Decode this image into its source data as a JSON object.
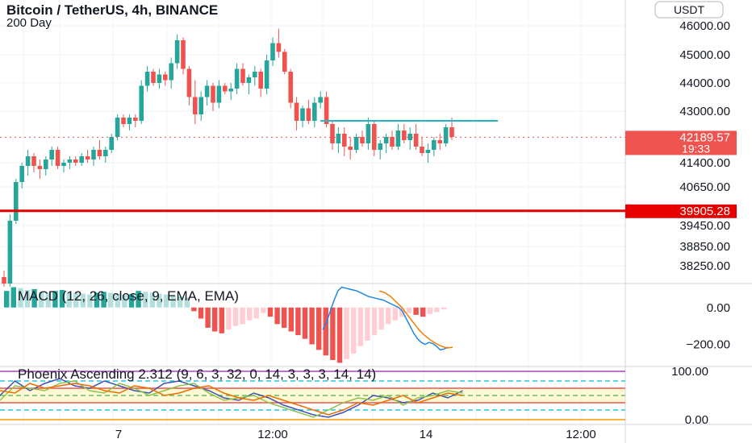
{
  "header": {
    "title": "Bitcoin / TetherUS, 4h, BINANCE",
    "subtitle": "200 Day",
    "currency_badge": "USDT"
  },
  "colors": {
    "up": "#26a69a",
    "down": "#ef5350",
    "support_line": "#e60000",
    "resistance_line": "#26b5c7",
    "macd_line": "#1e88e5",
    "signal_line": "#f57c00",
    "hist_up_strong": "#26a69a",
    "hist_up_weak": "#b2dfdb",
    "hist_down_strong": "#ef5350",
    "hist_down_weak": "#ffcdd2"
  },
  "chart_data": [
    {
      "type": "candlestick",
      "pane": "price",
      "price_axis_labels": [
        "46000.00",
        "45000.00",
        "44000.00",
        "43000.00",
        "41400.00",
        "40650.00",
        "39450.00",
        "38850.00",
        "38250.00"
      ],
      "time_axis_labels": [
        "7",
        "12:00",
        "14",
        "12:00"
      ],
      "last_price": "42189.57",
      "countdown": "19:33",
      "support_level": "39905.28",
      "resistance_level": 42700,
      "ohlc": [
        [
          37900,
          38100,
          37600,
          37700
        ],
        [
          37700,
          39800,
          37600,
          39600
        ],
        [
          39600,
          40900,
          39500,
          40800
        ],
        [
          40800,
          41400,
          40600,
          41300
        ],
        [
          41300,
          41800,
          41000,
          41600
        ],
        [
          41600,
          41700,
          41100,
          41300
        ],
        [
          41300,
          41500,
          40900,
          41200
        ],
        [
          41200,
          41600,
          41000,
          41500
        ],
        [
          41500,
          41900,
          41300,
          41800
        ],
        [
          41800,
          41900,
          41200,
          41300
        ],
        [
          41300,
          41500,
          41100,
          41400
        ],
        [
          41400,
          41600,
          41200,
          41500
        ],
        [
          41500,
          41600,
          41300,
          41400
        ],
        [
          41400,
          41700,
          41300,
          41600
        ],
        [
          41600,
          41800,
          41400,
          41500
        ],
        [
          41500,
          41900,
          41300,
          41800
        ],
        [
          41800,
          42100,
          41500,
          41600
        ],
        [
          41600,
          41900,
          41400,
          41800
        ],
        [
          41800,
          42300,
          41700,
          42200
        ],
        [
          42200,
          42900,
          42100,
          42800
        ],
        [
          42800,
          42900,
          42500,
          42600
        ],
        [
          42600,
          42900,
          42400,
          42800
        ],
        [
          42800,
          42900,
          42500,
          42700
        ],
        [
          42700,
          44100,
          42600,
          43900
        ],
        [
          43900,
          44600,
          43700,
          44400
        ],
        [
          44400,
          44500,
          43900,
          44000
        ],
        [
          44000,
          44500,
          43800,
          44300
        ],
        [
          44300,
          44400,
          43900,
          44100
        ],
        [
          44100,
          44900,
          43800,
          44700
        ],
        [
          44700,
          45700,
          44500,
          45500
        ],
        [
          45500,
          45600,
          44300,
          44500
        ],
        [
          44500,
          44600,
          43200,
          43500
        ],
        [
          43500,
          44100,
          42600,
          42900
        ],
        [
          42900,
          43700,
          42700,
          43500
        ],
        [
          43500,
          44100,
          43200,
          43900
        ],
        [
          43900,
          44000,
          43000,
          43300
        ],
        [
          43300,
          44100,
          43100,
          43900
        ],
        [
          43900,
          44000,
          43600,
          43700
        ],
        [
          43700,
          44000,
          43400,
          43800
        ],
        [
          43800,
          44700,
          43600,
          44500
        ],
        [
          44500,
          44700,
          43900,
          44000
        ],
        [
          44000,
          44300,
          43600,
          44200
        ],
        [
          44200,
          44600,
          43900,
          44400
        ],
        [
          44400,
          44500,
          43500,
          43800
        ],
        [
          43800,
          45000,
          43600,
          44800
        ],
        [
          44800,
          45600,
          44600,
          45400
        ],
        [
          45400,
          45900,
          44900,
          45100
        ],
        [
          45100,
          45200,
          44300,
          44400
        ],
        [
          44400,
          44500,
          43100,
          43300
        ],
        [
          43300,
          43500,
          42400,
          42700
        ],
        [
          42700,
          43200,
          42500,
          43100
        ],
        [
          43100,
          43400,
          42600,
          42700
        ],
        [
          42700,
          43500,
          42500,
          43300
        ],
        [
          43300,
          43700,
          43100,
          43500
        ],
        [
          43500,
          43700,
          42500,
          42600
        ],
        [
          42600,
          42700,
          41800,
          42000
        ],
        [
          42000,
          42500,
          41700,
          42300
        ],
        [
          42300,
          42500,
          41600,
          41900
        ],
        [
          41900,
          42200,
          41500,
          41800
        ],
        [
          41800,
          42300,
          41700,
          42200
        ],
        [
          42200,
          42400,
          41900,
          42000
        ],
        [
          42000,
          42800,
          41800,
          42600
        ],
        [
          42600,
          42700,
          41600,
          41800
        ],
        [
          41800,
          42100,
          41500,
          42000
        ],
        [
          42000,
          42300,
          41700,
          42200
        ],
        [
          42200,
          42400,
          41800,
          41900
        ],
        [
          41900,
          42600,
          41800,
          42400
        ],
        [
          42400,
          42600,
          42000,
          42100
        ],
        [
          42100,
          42500,
          41800,
          42300
        ],
        [
          42300,
          42600,
          41800,
          41900
        ],
        [
          41900,
          42200,
          41600,
          41700
        ],
        [
          41700,
          42000,
          41400,
          41800
        ],
        [
          41800,
          42200,
          41600,
          42100
        ],
        [
          42100,
          42300,
          41800,
          42000
        ],
        [
          42000,
          42600,
          41900,
          42500
        ],
        [
          42500,
          42800,
          42100,
          42200
        ]
      ]
    },
    {
      "type": "macd",
      "pane": "macd",
      "label": "MACD (12, 26, close, 9, EMA, EMA)",
      "axis_labels": [
        "0.00",
        "−200.00"
      ],
      "ylim": [
        -320,
        130
      ],
      "histogram": [
        90,
        110,
        105,
        95,
        100,
        85,
        80,
        90,
        95,
        85,
        80,
        75,
        70,
        80,
        85,
        80,
        75,
        70,
        72,
        90,
        85,
        80,
        75,
        70,
        65,
        60,
        55,
        -20,
        -60,
        -110,
        -130,
        -140,
        -120,
        -100,
        -90,
        -70,
        -60,
        -30,
        -50,
        -90,
        -110,
        -130,
        -150,
        -170,
        -200,
        -230,
        -260,
        -285,
        -300,
        -280,
        -250,
        -210,
        -180,
        -150,
        -120,
        -90,
        -70,
        -50,
        -30,
        -40,
        -50,
        -35,
        -25,
        -10
      ],
      "hist_start_index": 0,
      "macd_line": [
        -120,
        -80,
        -20,
        40,
        90,
        110,
        105,
        100,
        95,
        90,
        80,
        70,
        60,
        55,
        50,
        45,
        40,
        30,
        20,
        10,
        0,
        -20,
        -60,
        -100,
        -140,
        -170,
        -190,
        -200,
        -190,
        -195,
        -210,
        -230,
        -225,
        -215
      ],
      "signal_line": [
        null,
        null,
        null,
        null,
        null,
        null,
        null,
        null,
        null,
        null,
        null,
        null,
        null,
        null,
        null,
        null,
        null,
        null,
        null,
        null,
        90,
        80,
        60,
        30,
        0,
        -40,
        -80,
        -120,
        -150,
        -175,
        -195,
        -210,
        -220,
        -215
      ]
    },
    {
      "type": "oscillator",
      "pane": "oscillator",
      "label": "Phoenix Ascending 2.312 (9, 6, 3, 32, 0, 14, 3, 3, 3, 14, 14)",
      "axis_labels": [
        "100.00",
        "0.00"
      ],
      "ylim": [
        -10,
        110
      ],
      "levels": [
        100,
        80,
        65,
        50,
        35,
        20,
        0
      ],
      "series": [
        {
          "color": "#3f51b5",
          "values": [
            50,
            80,
            60,
            75,
            85,
            70,
            65,
            80,
            70,
            60,
            55,
            75,
            80,
            70,
            60,
            45,
            40,
            55,
            45,
            30,
            20,
            10,
            5,
            15,
            30,
            50,
            45,
            35,
            40,
            55,
            45,
            60
          ]
        },
        {
          "color": "#8bc34a",
          "values": [
            40,
            70,
            65,
            60,
            75,
            80,
            60,
            55,
            75,
            65,
            50,
            60,
            70,
            75,
            55,
            40,
            45,
            50,
            35,
            25,
            15,
            5,
            20,
            35,
            45,
            40,
            50,
            30,
            45,
            50,
            60,
            55
          ]
        },
        {
          "color": "#ef6c00",
          "values": [
            60,
            55,
            75,
            65,
            70,
            75,
            70,
            60,
            55,
            70,
            65,
            50,
            55,
            65,
            70,
            55,
            45,
            40,
            50,
            40,
            30,
            20,
            10,
            20,
            35,
            30,
            40,
            50,
            35,
            45,
            55,
            50
          ]
        }
      ]
    }
  ]
}
